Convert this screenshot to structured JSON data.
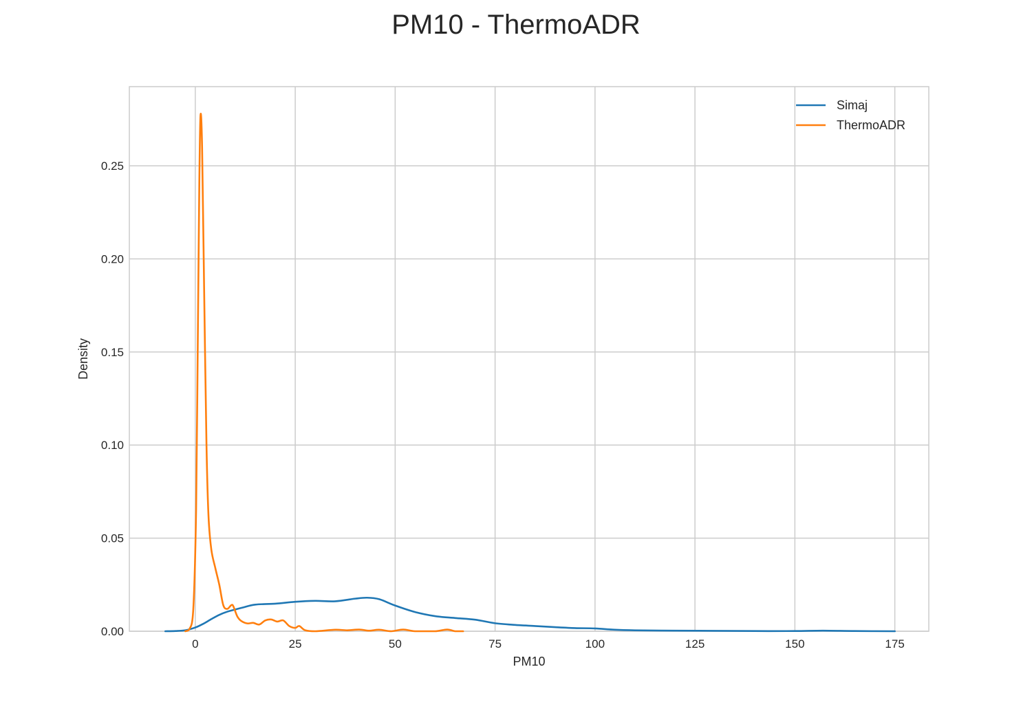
{
  "chart_data": {
    "type": "line",
    "title": "PM10 - ThermoADR",
    "xlabel": "PM10",
    "ylabel": "Density",
    "xlim": [
      -16.5,
      183.5
    ],
    "ylim": [
      0,
      0.2925
    ],
    "xticks": [
      0,
      25,
      50,
      75,
      100,
      125,
      150,
      175
    ],
    "xtick_labels": [
      "0",
      "25",
      "50",
      "75",
      "100",
      "125",
      "150",
      "175"
    ],
    "yticks": [
      0,
      0.05,
      0.1,
      0.15,
      0.2,
      0.25
    ],
    "ytick_labels": [
      "0.00",
      "0.05",
      "0.10",
      "0.15",
      "0.20",
      "0.25"
    ],
    "grid": true,
    "legend_position": "top-right",
    "series": [
      {
        "name": "Simaj",
        "color": "#1f77b4",
        "x": [
          -7.5,
          -5,
          -2.5,
          0,
          2,
          4,
          6,
          8,
          10,
          12,
          15,
          20,
          25,
          30,
          35,
          40,
          43,
          46,
          50,
          55,
          60,
          65,
          70,
          75,
          80,
          85,
          90,
          95,
          100,
          105,
          110,
          120,
          130,
          140,
          150,
          157,
          165,
          175
        ],
        "y": [
          0.0,
          0.0001,
          0.0005,
          0.002,
          0.004,
          0.0065,
          0.0088,
          0.0105,
          0.0117,
          0.0128,
          0.0143,
          0.0148,
          0.0158,
          0.0163,
          0.0161,
          0.0175,
          0.018,
          0.0172,
          0.0138,
          0.0103,
          0.0081,
          0.0071,
          0.0062,
          0.0043,
          0.0034,
          0.0028,
          0.0022,
          0.0017,
          0.0015,
          0.0008,
          0.0005,
          0.0003,
          0.0002,
          0.0001,
          0.0001,
          0.0003,
          0.0001,
          0.0
        ]
      },
      {
        "name": "ThermoADR",
        "color": "#ff7f0e",
        "x": [
          -2.5,
          -1.5,
          -0.5,
          0.2,
          0.6,
          1.0,
          1.3,
          1.7,
          2.2,
          2.8,
          3.3,
          4.0,
          5.0,
          6.0,
          7.0,
          8.0,
          9.0,
          9.5,
          10.5,
          11.5,
          13.0,
          14.5,
          16.0,
          17.5,
          19.0,
          20.5,
          22.0,
          23.5,
          25.0,
          26.0,
          27.5,
          30.0,
          35.0,
          38.0,
          41.0,
          43.5,
          46.0,
          49.0,
          52.0,
          55.0,
          60.0,
          63.0,
          65.0,
          67.0
        ],
        "y": [
          0.0,
          0.001,
          0.012,
          0.065,
          0.15,
          0.24,
          0.277,
          0.26,
          0.185,
          0.1,
          0.062,
          0.044,
          0.034,
          0.025,
          0.014,
          0.012,
          0.014,
          0.0135,
          0.008,
          0.0055,
          0.0042,
          0.0045,
          0.0036,
          0.0058,
          0.0063,
          0.0052,
          0.0058,
          0.0028,
          0.0018,
          0.0028,
          0.0005,
          0.0,
          0.0008,
          0.0005,
          0.0009,
          0.0003,
          0.0008,
          0.0,
          0.0009,
          0.0,
          0.0,
          0.0009,
          0.0,
          0.0
        ]
      }
    ]
  }
}
